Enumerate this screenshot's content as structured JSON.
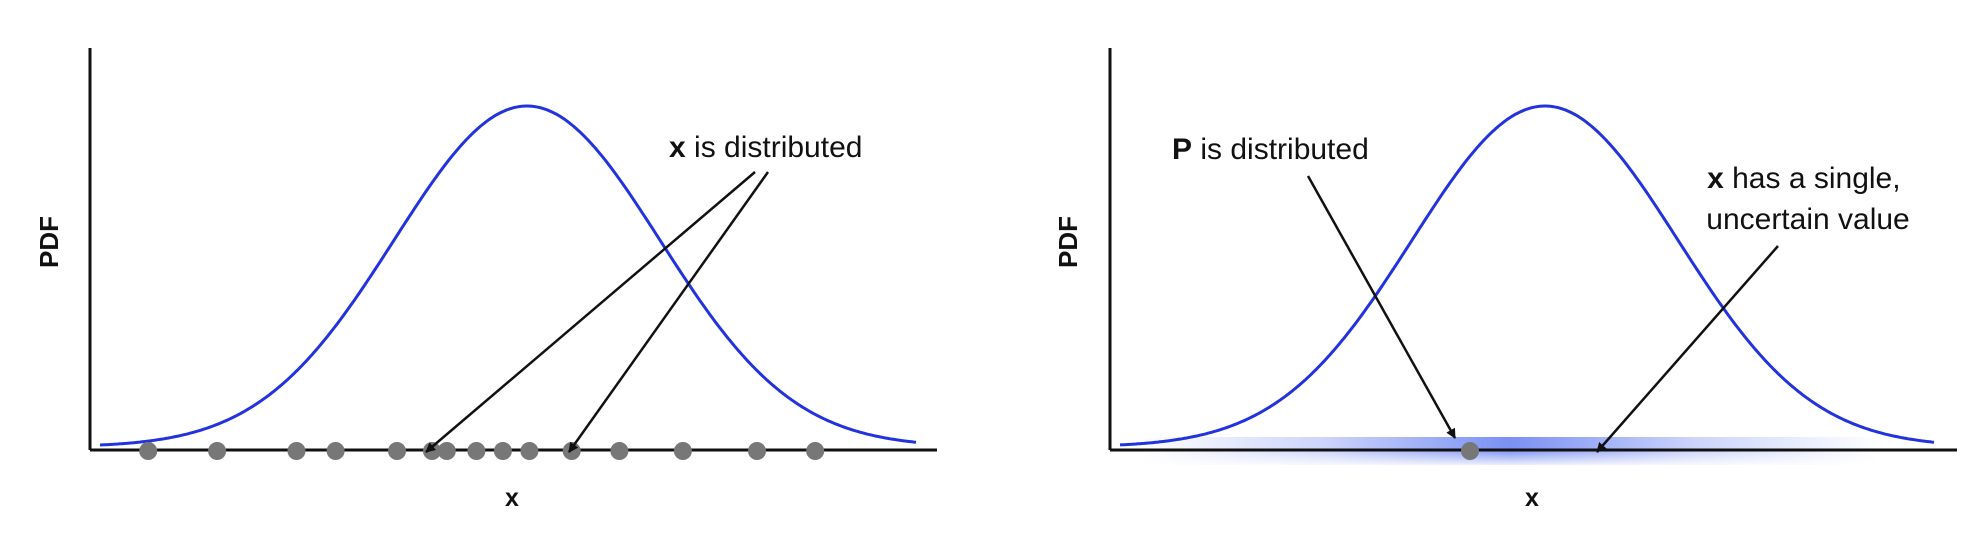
{
  "colors": {
    "curve": "#2233dd",
    "axis": "#111111",
    "dot": "#777777",
    "band": "#3355ee"
  },
  "panels": [
    {
      "ylabel": "PDF",
      "xlabel": "x",
      "annotation_bold": "x",
      "annotation_rest": " is distributed",
      "sample_dots_x": [
        0.55,
        1.2,
        1.95,
        2.32,
        2.9,
        3.23,
        3.37,
        3.65,
        3.9,
        4.15,
        4.55,
        5.0,
        5.6,
        6.3,
        6.85
      ]
    },
    {
      "ylabel": "PDF",
      "xlabel": "x",
      "annotation_left_bold": "P",
      "annotation_left_rest": " is distributed",
      "annotation_right_bold": "x",
      "annotation_right_line1_rest": " has a single,",
      "annotation_right_line2": "uncertain value",
      "single_value_x": 3.4
    }
  ]
}
